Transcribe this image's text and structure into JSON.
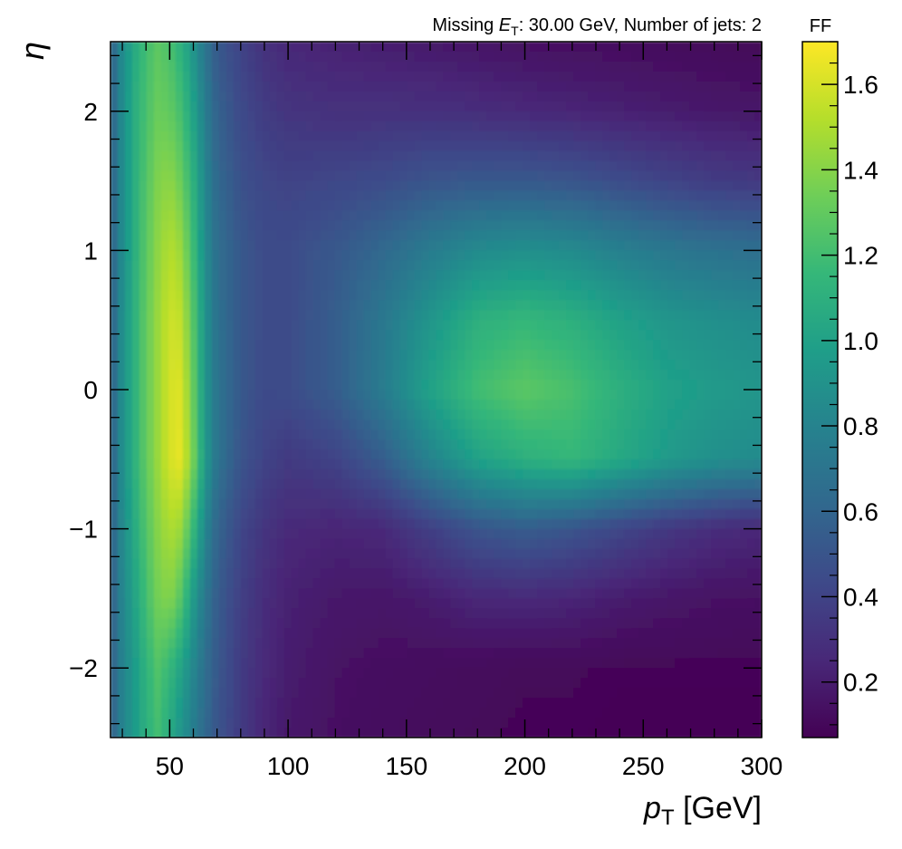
{
  "chart_data": {
    "type": "heatmap",
    "header": {
      "prefix": "Missing ",
      "sym": "E",
      "sub": "T",
      "suffix": ": 30.00 GeV, Number of jets: 2"
    },
    "xlabel": {
      "sym": "p",
      "sub": "T",
      "suffix": " [GeV]"
    },
    "ylabel": "η",
    "xlim": [
      25,
      300
    ],
    "ylim": [
      -2.5,
      2.5
    ],
    "x_major_ticks": [
      {
        "v": 50,
        "label": "50"
      },
      {
        "v": 100,
        "label": "100"
      },
      {
        "v": 150,
        "label": "150"
      },
      {
        "v": 200,
        "label": "200"
      },
      {
        "v": 250,
        "label": "250"
      },
      {
        "v": 300,
        "label": "300"
      }
    ],
    "x_minor_step": 10,
    "y_major_ticks": [
      {
        "v": -2,
        "label": "−2"
      },
      {
        "v": -1,
        "label": "−1"
      },
      {
        "v": 0,
        "label": "0"
      },
      {
        "v": 1,
        "label": "1"
      },
      {
        "v": 2,
        "label": "2"
      }
    ],
    "y_minor_step": 0.2,
    "colorbar": {
      "label": "FF",
      "range": [
        0.07,
        1.7
      ],
      "colormap": "viridis",
      "ticks": [
        {
          "v": 0.2,
          "label": "0.2"
        },
        {
          "v": 0.4,
          "label": "0.4"
        },
        {
          "v": 0.6,
          "label": "0.6"
        },
        {
          "v": 0.8,
          "label": "0.8"
        },
        {
          "v": 1.0,
          "label": "1.0"
        },
        {
          "v": 1.2,
          "label": "1.2"
        },
        {
          "v": 1.4,
          "label": "1.4"
        },
        {
          "v": 1.6,
          "label": "1.6"
        }
      ],
      "minor_step": 0.05
    },
    "x_centers": [
      25,
      30,
      35,
      40,
      45,
      50,
      55,
      60,
      65,
      70,
      80,
      90,
      100,
      120,
      140,
      160,
      180,
      200,
      220,
      240,
      260,
      280,
      300
    ],
    "y_centers": [
      -2.5,
      -2.0,
      -1.5,
      -1.0,
      -0.5,
      0.0,
      0.5,
      1.0,
      1.5,
      2.0,
      2.5
    ],
    "z": [
      [
        0.55,
        0.8,
        0.95,
        1.1,
        1.2,
        1.05,
        0.9,
        0.75,
        0.62,
        0.5,
        0.35,
        0.24,
        0.18,
        0.14,
        0.12,
        0.11,
        0.1,
        0.09,
        0.09,
        0.08,
        0.08,
        0.08,
        0.08
      ],
      [
        0.55,
        0.8,
        0.95,
        1.12,
        1.25,
        1.15,
        1.0,
        0.82,
        0.66,
        0.52,
        0.36,
        0.26,
        0.2,
        0.15,
        0.13,
        0.12,
        0.11,
        0.1,
        0.1,
        0.09,
        0.09,
        0.09,
        0.09
      ],
      [
        0.55,
        0.82,
        1.0,
        1.2,
        1.35,
        1.4,
        1.25,
        0.95,
        0.72,
        0.55,
        0.38,
        0.28,
        0.22,
        0.18,
        0.17,
        0.2,
        0.25,
        0.26,
        0.24,
        0.2,
        0.17,
        0.15,
        0.14
      ],
      [
        0.55,
        0.85,
        1.05,
        1.25,
        1.4,
        1.5,
        1.45,
        1.15,
        0.82,
        0.6,
        0.42,
        0.32,
        0.26,
        0.24,
        0.26,
        0.38,
        0.5,
        0.55,
        0.5,
        0.42,
        0.34,
        0.28,
        0.25
      ],
      [
        0.55,
        0.88,
        1.1,
        1.3,
        1.45,
        1.6,
        1.65,
        1.35,
        0.95,
        0.7,
        0.5,
        0.4,
        0.35,
        0.4,
        0.55,
        0.8,
        1.0,
        1.1,
        1.15,
        1.05,
        0.95,
        0.88,
        0.85
      ],
      [
        0.55,
        0.88,
        1.1,
        1.3,
        1.45,
        1.6,
        1.62,
        1.3,
        0.92,
        0.7,
        0.52,
        0.44,
        0.45,
        0.55,
        0.75,
        1.0,
        1.2,
        1.28,
        1.22,
        1.1,
        1.0,
        0.95,
        0.92
      ],
      [
        0.55,
        0.88,
        1.1,
        1.3,
        1.45,
        1.58,
        1.55,
        1.25,
        0.9,
        0.68,
        0.52,
        0.45,
        0.45,
        0.55,
        0.72,
        0.92,
        1.1,
        1.15,
        1.1,
        1.0,
        0.92,
        0.88,
        0.85
      ],
      [
        0.55,
        0.86,
        1.08,
        1.28,
        1.42,
        1.52,
        1.45,
        1.18,
        0.86,
        0.66,
        0.52,
        0.45,
        0.45,
        0.52,
        0.62,
        0.75,
        0.85,
        0.88,
        0.85,
        0.78,
        0.72,
        0.68,
        0.66
      ],
      [
        0.55,
        0.86,
        1.08,
        1.25,
        1.38,
        1.42,
        1.32,
        1.1,
        0.82,
        0.62,
        0.48,
        0.42,
        0.4,
        0.42,
        0.45,
        0.5,
        0.52,
        0.52,
        0.5,
        0.45,
        0.4,
        0.36,
        0.34
      ],
      [
        0.55,
        0.86,
        1.08,
        1.22,
        1.32,
        1.3,
        1.2,
        1.0,
        0.76,
        0.58,
        0.44,
        0.36,
        0.32,
        0.3,
        0.3,
        0.3,
        0.28,
        0.26,
        0.24,
        0.22,
        0.2,
        0.18,
        0.17
      ],
      [
        0.55,
        0.86,
        1.05,
        1.2,
        1.28,
        1.22,
        1.1,
        0.9,
        0.7,
        0.52,
        0.4,
        0.3,
        0.25,
        0.22,
        0.2,
        0.18,
        0.16,
        0.14,
        0.13,
        0.12,
        0.11,
        0.1,
        0.09
      ]
    ]
  }
}
